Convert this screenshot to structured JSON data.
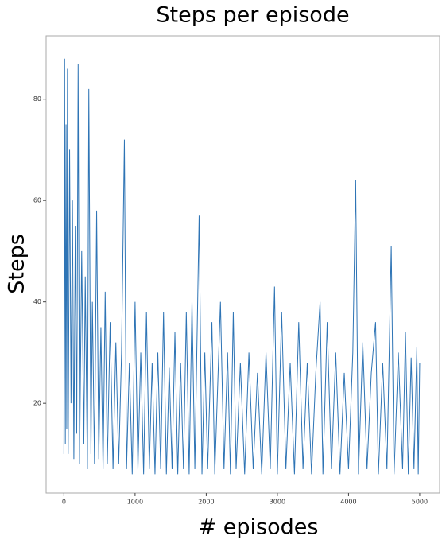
{
  "chart_data": {
    "type": "line",
    "title": "Steps per episode",
    "xlabel": "# episodes",
    "ylabel": "Steps",
    "x": [
      0,
      10,
      20,
      30,
      40,
      50,
      60,
      80,
      100,
      120,
      140,
      160,
      180,
      200,
      220,
      250,
      280,
      300,
      330,
      350,
      380,
      400,
      430,
      460,
      490,
      520,
      550,
      580,
      610,
      650,
      690,
      730,
      770,
      810,
      850,
      880,
      920,
      960,
      1000,
      1040,
      1080,
      1120,
      1160,
      1200,
      1240,
      1280,
      1320,
      1360,
      1400,
      1440,
      1480,
      1520,
      1560,
      1600,
      1640,
      1680,
      1720,
      1760,
      1800,
      1840,
      1900,
      1940,
      1980,
      2020,
      2080,
      2120,
      2200,
      2250,
      2300,
      2340,
      2380,
      2420,
      2480,
      2540,
      2600,
      2660,
      2720,
      2780,
      2840,
      2900,
      2960,
      3000,
      3060,
      3120,
      3180,
      3240,
      3300,
      3360,
      3420,
      3480,
      3540,
      3600,
      3640,
      3700,
      3760,
      3820,
      3880,
      3940,
      4000,
      4060,
      4100,
      4140,
      4200,
      4260,
      4320,
      4380,
      4420,
      4480,
      4540,
      4600,
      4640,
      4700,
      4760,
      4800,
      4840,
      4880,
      4920,
      4960,
      4980,
      5000
    ],
    "series": [
      {
        "name": "Steps",
        "color": "#2e74b5",
        "values": [
          10,
          88,
          12,
          75,
          15,
          86,
          10,
          70,
          20,
          60,
          9,
          55,
          14,
          87,
          8,
          50,
          12,
          45,
          7,
          82,
          10,
          40,
          8,
          58,
          9,
          35,
          7,
          42,
          8,
          36,
          7,
          32,
          8,
          30,
          72,
          7,
          28,
          6,
          40,
          7,
          30,
          6,
          38,
          7,
          28,
          6,
          30,
          7,
          38,
          6,
          27,
          7,
          34,
          6,
          28,
          7,
          38,
          6,
          40,
          7,
          57,
          6,
          30,
          7,
          36,
          6,
          40,
          7,
          30,
          6,
          38,
          7,
          28,
          6,
          30,
          7,
          26,
          6,
          30,
          7,
          43,
          6,
          38,
          7,
          28,
          6,
          36,
          7,
          28,
          6,
          26,
          40,
          6,
          36,
          7,
          30,
          6,
          26,
          7,
          30,
          64,
          6,
          32,
          7,
          26,
          36,
          6,
          28,
          7,
          51,
          6,
          30,
          7,
          34,
          6,
          29,
          7,
          31,
          6,
          28
        ]
      }
    ],
    "xlim": [
      -250,
      5280
    ],
    "ylim": [
      2.3,
      92.5
    ],
    "xticks": [
      0,
      1000,
      2000,
      3000,
      4000,
      5000
    ],
    "yticks": [
      20,
      40,
      60,
      80
    ]
  }
}
